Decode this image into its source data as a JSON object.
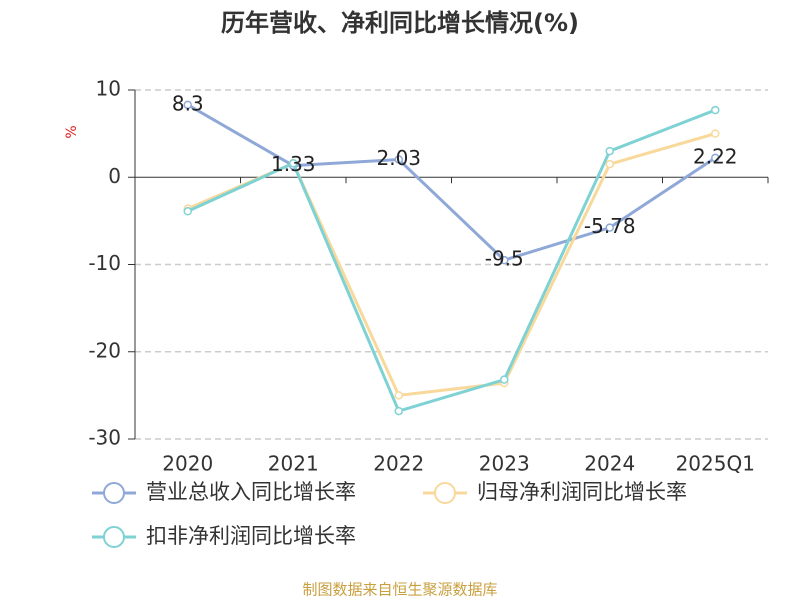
{
  "chart_data": {
    "type": "line",
    "title": "历年营收、净利同比增长情况(%)",
    "y_label": "%",
    "categories": [
      "2020",
      "2021",
      "2022",
      "2023",
      "2024",
      "2025Q1"
    ],
    "series": [
      {
        "name": "营业总收入同比增长率",
        "color": "#8fa8d8",
        "values": [
          8.3,
          1.33,
          2.03,
          -9.5,
          -5.78,
          2.22
        ],
        "data_labels": true
      },
      {
        "name": "归母净利润同比增长率",
        "color": "#f8d99b",
        "values": [
          -3.6,
          1.6,
          -25.0,
          -23.6,
          1.5,
          5.0
        ]
      },
      {
        "name": "扣非净利润同比增长率",
        "color": "#7fd2d3",
        "values": [
          -3.9,
          1.6,
          -26.8,
          -23.2,
          3.0,
          7.7
        ]
      }
    ],
    "ylim": [
      -30,
      10
    ],
    "yticks": [
      -30,
      -20,
      -10,
      0,
      10
    ],
    "grid": true,
    "source": "制图数据来自恒生聚源数据库"
  }
}
